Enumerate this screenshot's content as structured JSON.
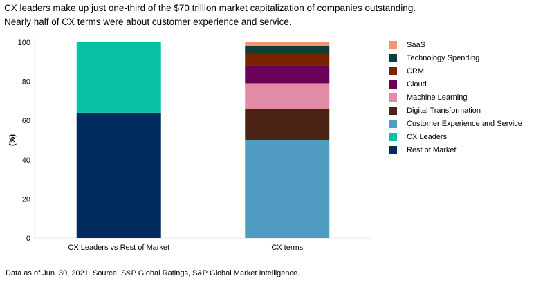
{
  "title_lines": [
    "CX leaders make up just one-third of the $70 trillion market capitalization of companies outstanding.",
    "Nearly half of CX terms were about customer experience and service."
  ],
  "footnote": "Data as of Jun. 30, 2021. Source: S&P Global Ratings, S&P Global Market Intelligence.",
  "chart_data": {
    "type": "bar",
    "stacked": true,
    "categories": [
      "CX Leaders vs Rest of Market",
      "CX terms"
    ],
    "ylabel": "(%)",
    "xlabel": "",
    "ylim": [
      0,
      100
    ],
    "yticks": [
      0,
      20,
      40,
      60,
      80,
      100
    ],
    "grid": false,
    "legend_position": "right",
    "series": [
      {
        "name": "Rest of Market",
        "color": "#002b5c",
        "values": [
          64,
          0
        ]
      },
      {
        "name": "CX Leaders",
        "color": "#08c2a6",
        "values": [
          36,
          0
        ]
      },
      {
        "name": "Customer Experience and Service",
        "color": "#509bc2",
        "values": [
          0,
          50
        ]
      },
      {
        "name": "Digital Transformation",
        "color": "#4a2315",
        "values": [
          0,
          16
        ]
      },
      {
        "name": "Machine Learning",
        "color": "#e08ca6",
        "values": [
          0,
          13
        ]
      },
      {
        "name": "Cloud",
        "color": "#6b0058",
        "values": [
          0,
          9
        ]
      },
      {
        "name": "CRM",
        "color": "#7a2100",
        "values": [
          0,
          6
        ]
      },
      {
        "name": "Technology Spending",
        "color": "#0e3c36",
        "values": [
          0,
          4
        ]
      },
      {
        "name": "SaaS",
        "color": "#f0966c",
        "values": [
          0,
          2
        ]
      }
    ]
  }
}
